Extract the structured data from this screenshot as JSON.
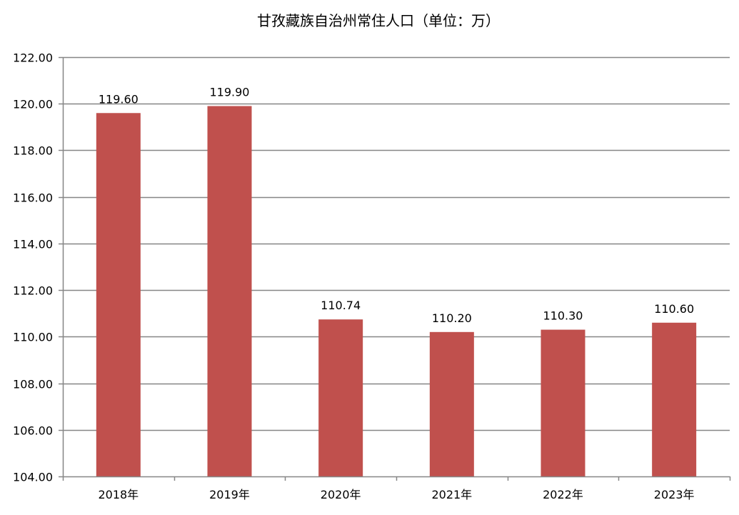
{
  "chart_data": {
    "type": "bar",
    "title": "甘孜藏族自治州常住人口（单位：万）",
    "xlabel": "",
    "ylabel": "",
    "categories": [
      "2018年",
      "2019年",
      "2020年",
      "2021年",
      "2022年",
      "2023年"
    ],
    "values": [
      119.6,
      119.9,
      110.74,
      110.2,
      110.3,
      110.6
    ],
    "data_labels": [
      "119.60",
      "119.90",
      "110.74",
      "110.20",
      "110.30",
      "110.60"
    ],
    "ylim": [
      104,
      122
    ],
    "y_ticks": [
      104,
      106,
      108,
      110,
      112,
      114,
      116,
      118,
      120,
      122
    ],
    "y_tick_labels": [
      "104.00",
      "106.00",
      "108.00",
      "110.00",
      "112.00",
      "114.00",
      "116.00",
      "118.00",
      "120.00",
      "122.00"
    ],
    "grid": true,
    "legend": "none",
    "colors": {
      "bar": "#C0504D",
      "grid": "#868686",
      "axis": "#868686"
    }
  }
}
